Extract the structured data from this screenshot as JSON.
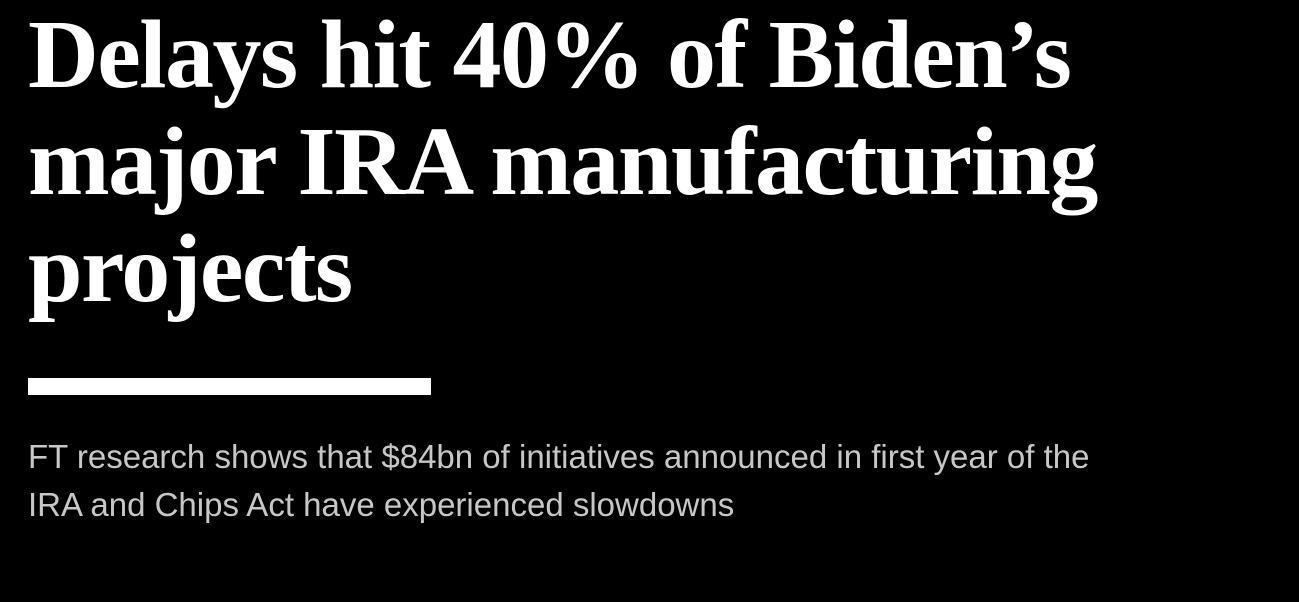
{
  "article": {
    "headline": {
      "full": "Delays hit 40% of Biden’s major IRA manufacturing projects",
      "lines": [
        "Delays hit 40% of Biden’s",
        "major IRA manufacturing",
        "projects"
      ]
    },
    "standfirst": {
      "full": "FT research shows that $84bn of initiatives announced in first year of the IRA and Chips Act have experienced slowdowns",
      "lines": [
        "FT research shows that $84bn of initiatives announced in first year of the",
        "IRA and Chips Act have experienced slowdowns"
      ]
    }
  },
  "colors": {
    "background": "#000000",
    "headline_text": "#ffffff",
    "divider": "#ffffff",
    "standfirst_text": "#c7c7c7"
  }
}
